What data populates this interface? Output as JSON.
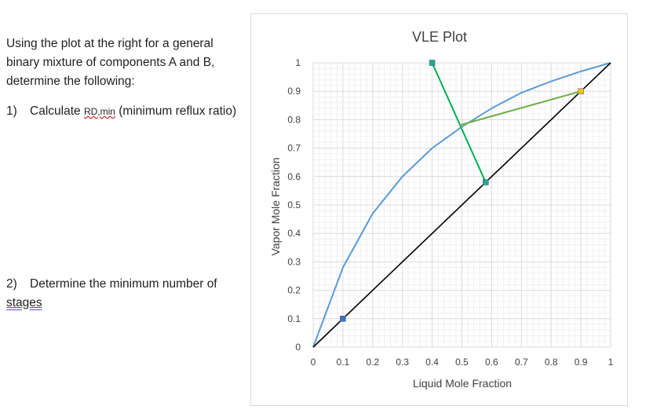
{
  "document": {
    "intro": "Using the plot at the right for a general binary mixture of components A and B, determine the following:",
    "q1": {
      "number": "1)",
      "text_before": "Calculate ",
      "rd_symbol": "RD,min",
      "text_after": " (minimum reflux ratio)"
    },
    "q2": {
      "number": "2)",
      "text_before": "Determine the minimum number of ",
      "underlined": "stages"
    }
  },
  "chart_data": {
    "type": "line",
    "title": "VLE Plot",
    "xlabel": "Liquid Mole Fraction",
    "ylabel": "Vapor Mole Fraction",
    "xlim": [
      0,
      1
    ],
    "ylim": [
      0,
      1
    ],
    "x_ticks": [
      "0",
      "0.1",
      "0.2",
      "0.3",
      "0.4",
      "0.5",
      "0.6",
      "0.7",
      "0.8",
      "0.9",
      "1"
    ],
    "y_ticks": [
      "0",
      "0.1",
      "0.2",
      "0.3",
      "0.4",
      "0.5",
      "0.6",
      "0.7",
      "0.8",
      "0.9",
      "1"
    ],
    "grid": true,
    "series": [
      {
        "color": "#5b9bd5",
        "x": [
          0,
          0.1,
          0.2,
          0.3,
          0.4,
          0.5,
          0.6,
          0.7,
          0.8,
          0.9,
          1.0
        ],
        "y": [
          0,
          0.28,
          0.47,
          0.6,
          0.7,
          0.775,
          0.84,
          0.895,
          0.935,
          0.97,
          1.0
        ]
      },
      {
        "color": "#000000",
        "x": [
          0,
          1
        ],
        "y": [
          0,
          1
        ]
      },
      {
        "color": "#00b050",
        "x": [
          0.4,
          0.58
        ],
        "y": [
          1.0,
          0.58
        ]
      },
      {
        "color": "#70ad47",
        "x": [
          0.49,
          0.9
        ],
        "y": [
          0.78,
          0.9
        ]
      }
    ],
    "markers": [
      {
        "x": 0.1,
        "y": 0.1,
        "color": "#4472c4"
      },
      {
        "x": 0.4,
        "y": 1.0,
        "color": "#2ea58c"
      },
      {
        "x": 0.58,
        "y": 0.58,
        "color": "#2ea58c"
      },
      {
        "x": 0.9,
        "y": 0.9,
        "color": "#ffc000"
      }
    ]
  }
}
